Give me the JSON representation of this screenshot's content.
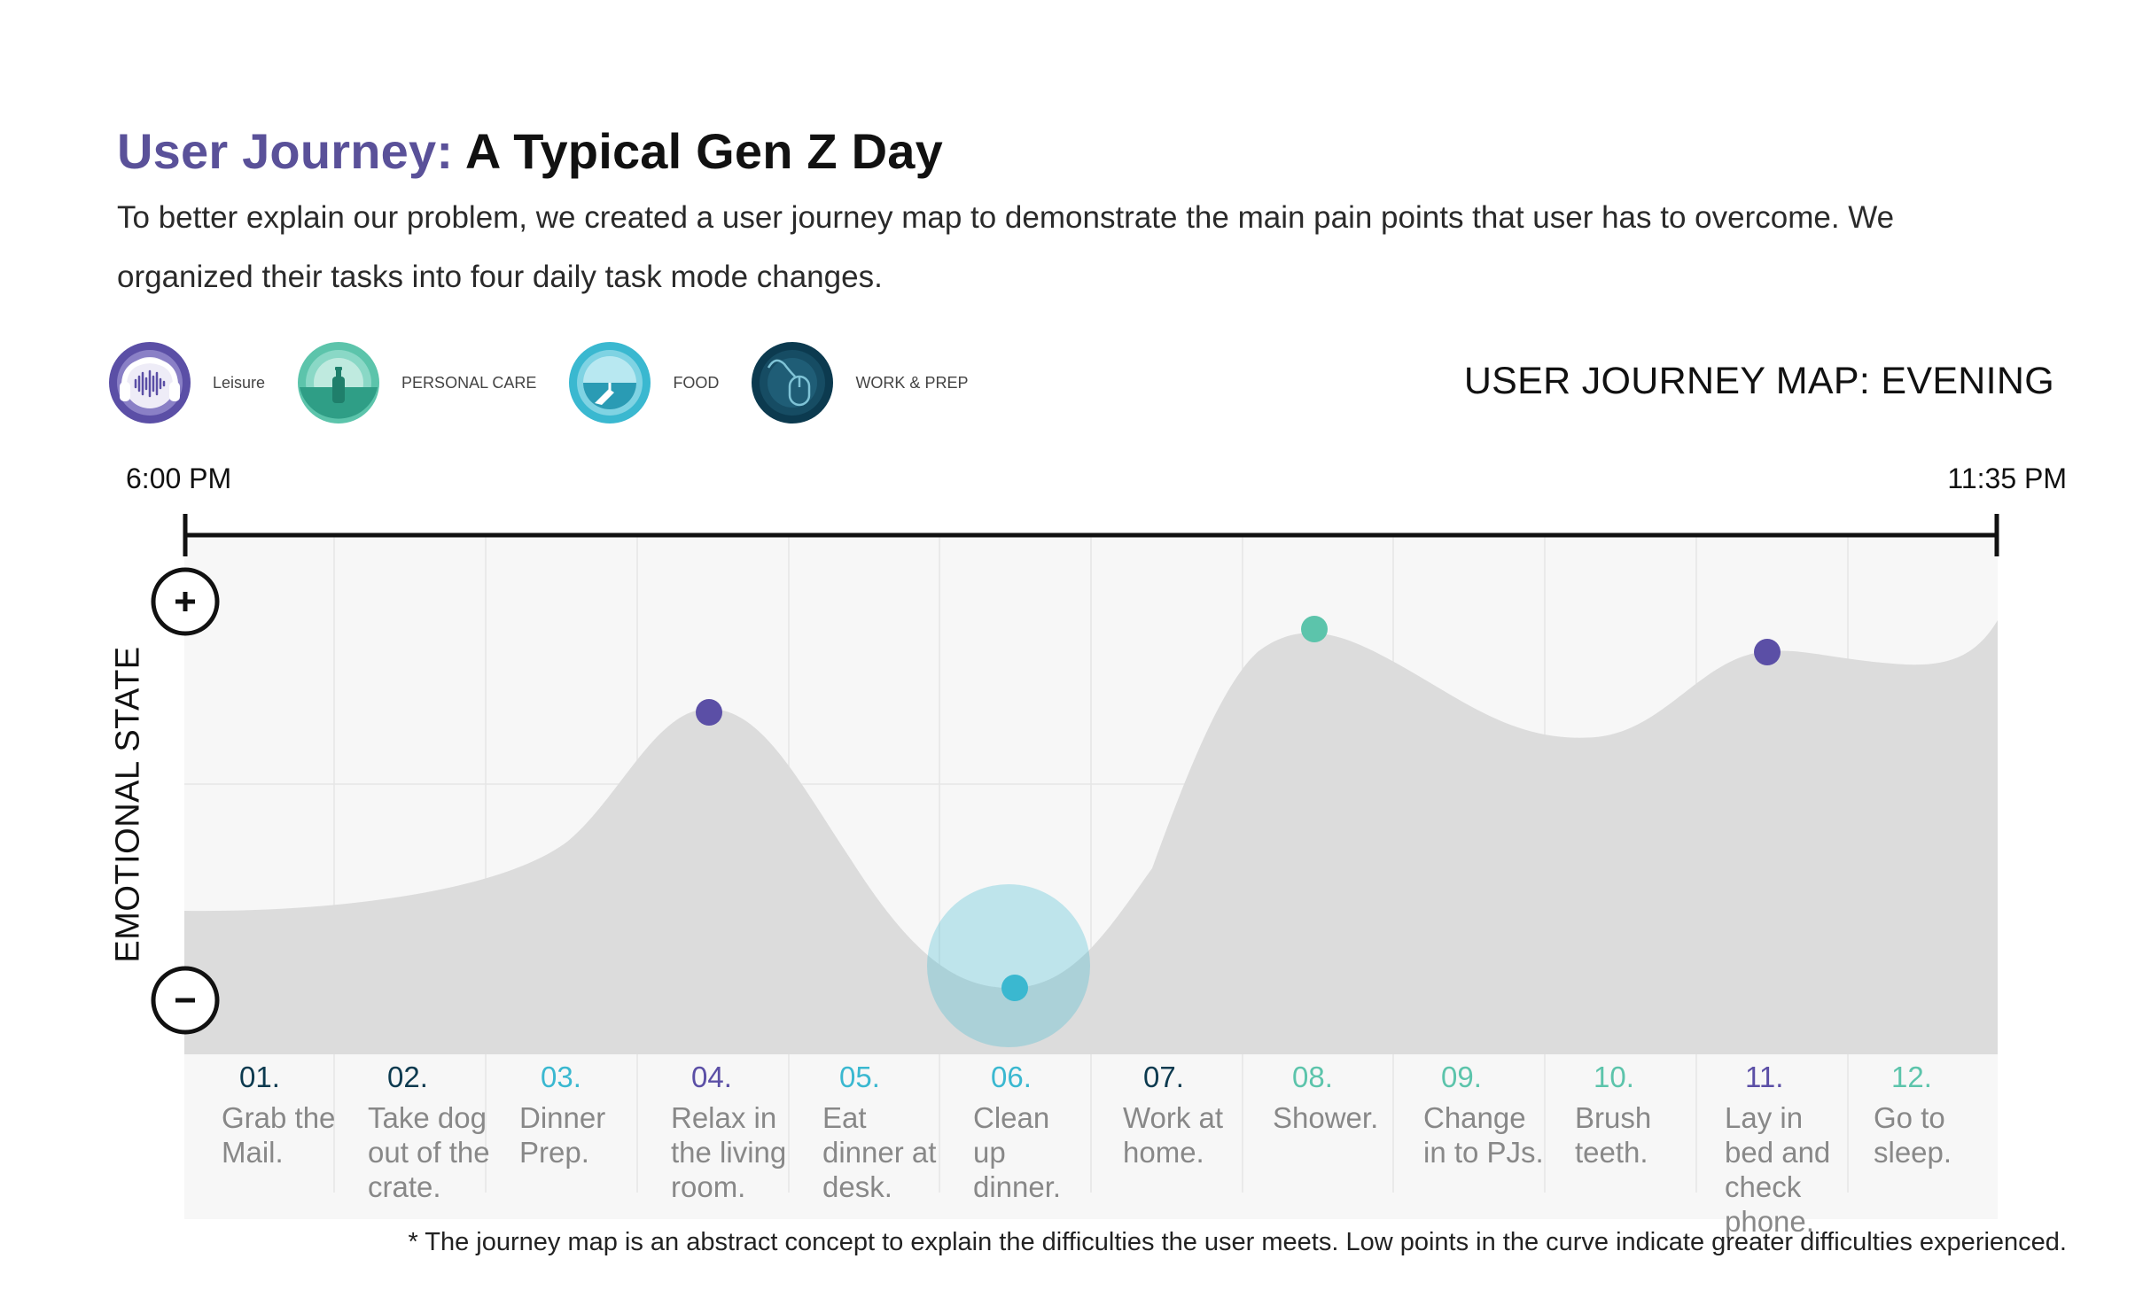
{
  "header": {
    "title_accent": "User Journey:",
    "title_rest": "A Typical Gen Z Day",
    "description": "To better explain our problem, we created a user journey map to demonstrate the main pain points that user has to overcome. We organized their tasks into four daily task mode changes."
  },
  "legend": [
    {
      "label": "Leisure",
      "icon": "sound-wave-icon",
      "color": "#5b4fa6"
    },
    {
      "label": "PERSONAL CARE",
      "icon": "bottle-icon",
      "color": "#5cc4ab"
    },
    {
      "label": "FOOD",
      "icon": "plate-icon",
      "color": "#3ab8d0"
    },
    {
      "label": "WORK & PREP",
      "icon": "mouse-icon",
      "color": "#0c3a4f"
    }
  ],
  "map_title": "USER JOURNEY MAP: EVENING",
  "timeline": {
    "start": "6:00 PM",
    "end": "11:35 PM"
  },
  "y_axis_label": "EMOTIONAL STATE",
  "scale": {
    "positive_icon": "plus-icon",
    "negative_icon": "minus-icon"
  },
  "steps": [
    {
      "num": "01.",
      "label": "Grab the Mail.",
      "color": "#0c3a4f"
    },
    {
      "num": "02.",
      "label": "Take dog out of the crate.",
      "color": "#0c3a4f"
    },
    {
      "num": "03.",
      "label": "Dinner Prep.",
      "color": "#3ab8d0"
    },
    {
      "num": "04.",
      "label": "Relax in the living room.",
      "color": "#5b4fa6"
    },
    {
      "num": "05.",
      "label": "Eat dinner at desk.",
      "color": "#3ab8d0"
    },
    {
      "num": "06.",
      "label": "Clean up dinner.",
      "color": "#3ab8d0"
    },
    {
      "num": "07.",
      "label": "Work at home.",
      "color": "#0c3a4f"
    },
    {
      "num": "08.",
      "label": "Shower.",
      "color": "#5cc4ab"
    },
    {
      "num": "09.",
      "label": "Change in to PJs.",
      "color": "#5cc4ab"
    },
    {
      "num": "10.",
      "label": "Brush teeth.",
      "color": "#5cc4ab"
    },
    {
      "num": "11.",
      "label": "Lay in bed and check phone.",
      "color": "#5b4fa6"
    },
    {
      "num": "12.",
      "label": "Go to sleep.",
      "color": "#5cc4ab"
    }
  ],
  "markers": [
    {
      "step": "04.",
      "color": "#5b4fa6"
    },
    {
      "step": "06.",
      "color": "#3ab8d0",
      "highlight": "pain-point"
    },
    {
      "step": "08.",
      "color": "#5cc4ab"
    },
    {
      "step": "11.",
      "color": "#5b4fa6"
    }
  ],
  "footnote": "* The journey map is an abstract concept to explain the difficulties the user meets. Low points in the curve indicate greater difficulties experienced.",
  "colors": {
    "leisure": "#5b4fa6",
    "personal_care": "#5cc4ab",
    "food": "#3ab8d0",
    "work_prep": "#0c3a4f",
    "curve": "#dcdcdc",
    "panel": "#f7f7f7"
  }
}
